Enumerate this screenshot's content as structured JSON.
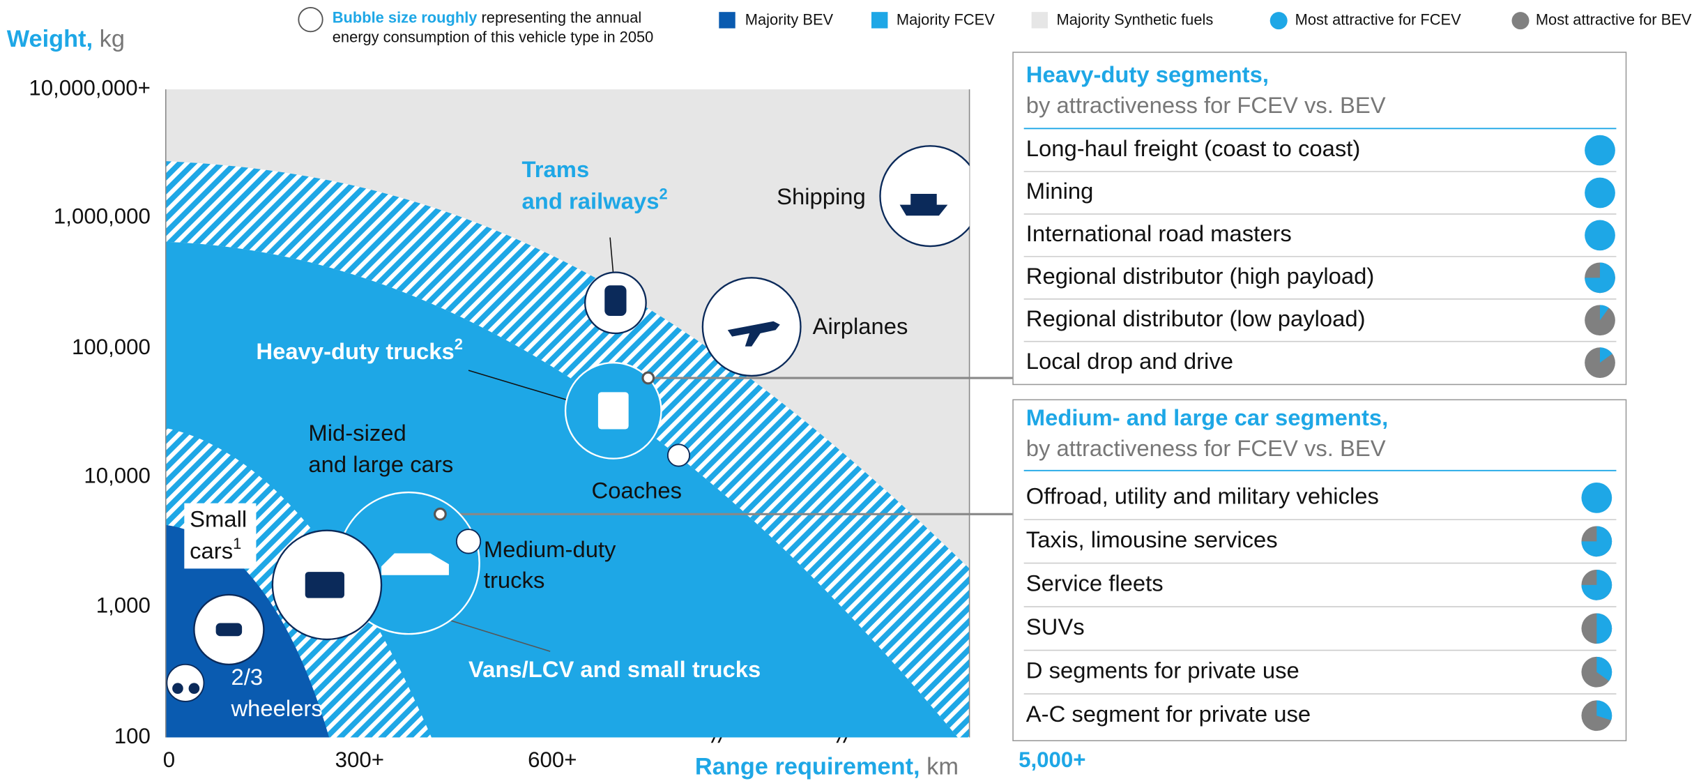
{
  "legend": {
    "bubble_note": {
      "highlight": "Bubble size roughly",
      "rest": "representing the annual",
      "line2": "energy consumption of this vehicle type in 2050"
    },
    "items": [
      "Majority BEV",
      "Majority FCEV",
      "Majority Synthetic fuels",
      "Most attractive for FCEV",
      "Most attractive for BEV"
    ]
  },
  "axes": {
    "y_label": "Weight,",
    "y_unit": "kg",
    "y_ticks": [
      "10,000,000+",
      "1,000,000",
      "100,000",
      "10,000",
      "1,000",
      "100"
    ],
    "x_label": "Range requirement,",
    "x_unit": "km",
    "x_ticks": [
      "0",
      "300+",
      "600+",
      "5,000+"
    ]
  },
  "bubbles": {
    "trams": {
      "line1": "Trams",
      "line2": "and railways",
      "sup": "2"
    },
    "shipping": "Shipping",
    "airplanes": "Airplanes",
    "heavy_duty": {
      "text": "Heavy-duty trucks",
      "sup": "2"
    },
    "mid_sized": {
      "line1": "Mid-sized",
      "line2": "and large cars"
    },
    "coaches": "Coaches",
    "small_cars": {
      "line1": "Small",
      "line2": "cars",
      "sup": "1"
    },
    "medium_duty": {
      "line1": "Medium-duty",
      "line2": "trucks"
    },
    "wheelers": {
      "line1": "2/3",
      "line2": "wheelers"
    },
    "vans": "Vans/LCV and small trucks"
  },
  "panels": [
    {
      "title": "Heavy-duty segments,",
      "subtitle": "by attractiveness for FCEV vs. BEV",
      "rows": [
        {
          "label": "Long-haul freight (coast to coast)",
          "fcev_share": 100
        },
        {
          "label": "Mining",
          "fcev_share": 100
        },
        {
          "label": "International road masters",
          "fcev_share": 100
        },
        {
          "label": "Regional distributor (high payload)",
          "fcev_share": 75
        },
        {
          "label": "Regional distributor (low payload)",
          "fcev_share": 10
        },
        {
          "label": "Local drop and drive",
          "fcev_share": 15
        }
      ]
    },
    {
      "title": "Medium- and large car segments,",
      "subtitle": "by attractiveness for FCEV vs. BEV",
      "rows": [
        {
          "label": "Offroad, utility and military vehicles",
          "fcev_share": 100
        },
        {
          "label": "Taxis, limousine services",
          "fcev_share": 75
        },
        {
          "label": "Service fleets",
          "fcev_share": 75
        },
        {
          "label": "SUVs",
          "fcev_share": 50
        },
        {
          "label": "D segments for private use",
          "fcev_share": 35
        },
        {
          "label": "A-C segment for private use",
          "fcev_share": 30
        }
      ]
    }
  ]
}
